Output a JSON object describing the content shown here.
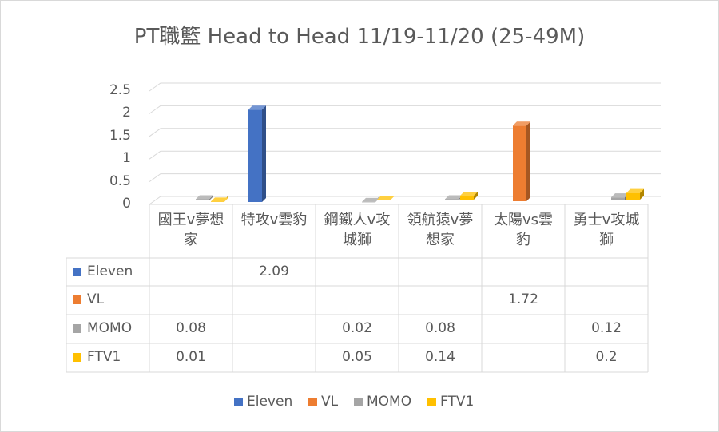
{
  "chart_data": {
    "type": "bar3d",
    "title": "PT職籃 Head to Head 11/19-11/20 (25-49M)",
    "categories": [
      "國王v夢想家",
      "特攻v雲豹",
      "鋼鐵人v攻城獅",
      "領航猿v夢想家",
      "太陽vs雲豹",
      "勇士v攻城獅"
    ],
    "series": [
      {
        "name": "Eleven",
        "color": "#4472c4",
        "values": [
          null,
          2.09,
          null,
          null,
          null,
          null
        ]
      },
      {
        "name": "VL",
        "color": "#ed7d31",
        "values": [
          null,
          null,
          null,
          null,
          1.72,
          null
        ]
      },
      {
        "name": "MOMO",
        "color": "#a5a5a5",
        "values": [
          0.08,
          null,
          0.02,
          0.08,
          null,
          0.12
        ]
      },
      {
        "name": "FTV1",
        "color": "#ffc000",
        "values": [
          0.01,
          null,
          0.05,
          0.14,
          null,
          0.2
        ]
      }
    ],
    "ylim": [
      0,
      2.5
    ],
    "yticks": [
      0,
      0.5,
      1,
      1.5,
      2,
      2.5
    ],
    "grid": true,
    "legend": "bottom",
    "data_table": true
  }
}
